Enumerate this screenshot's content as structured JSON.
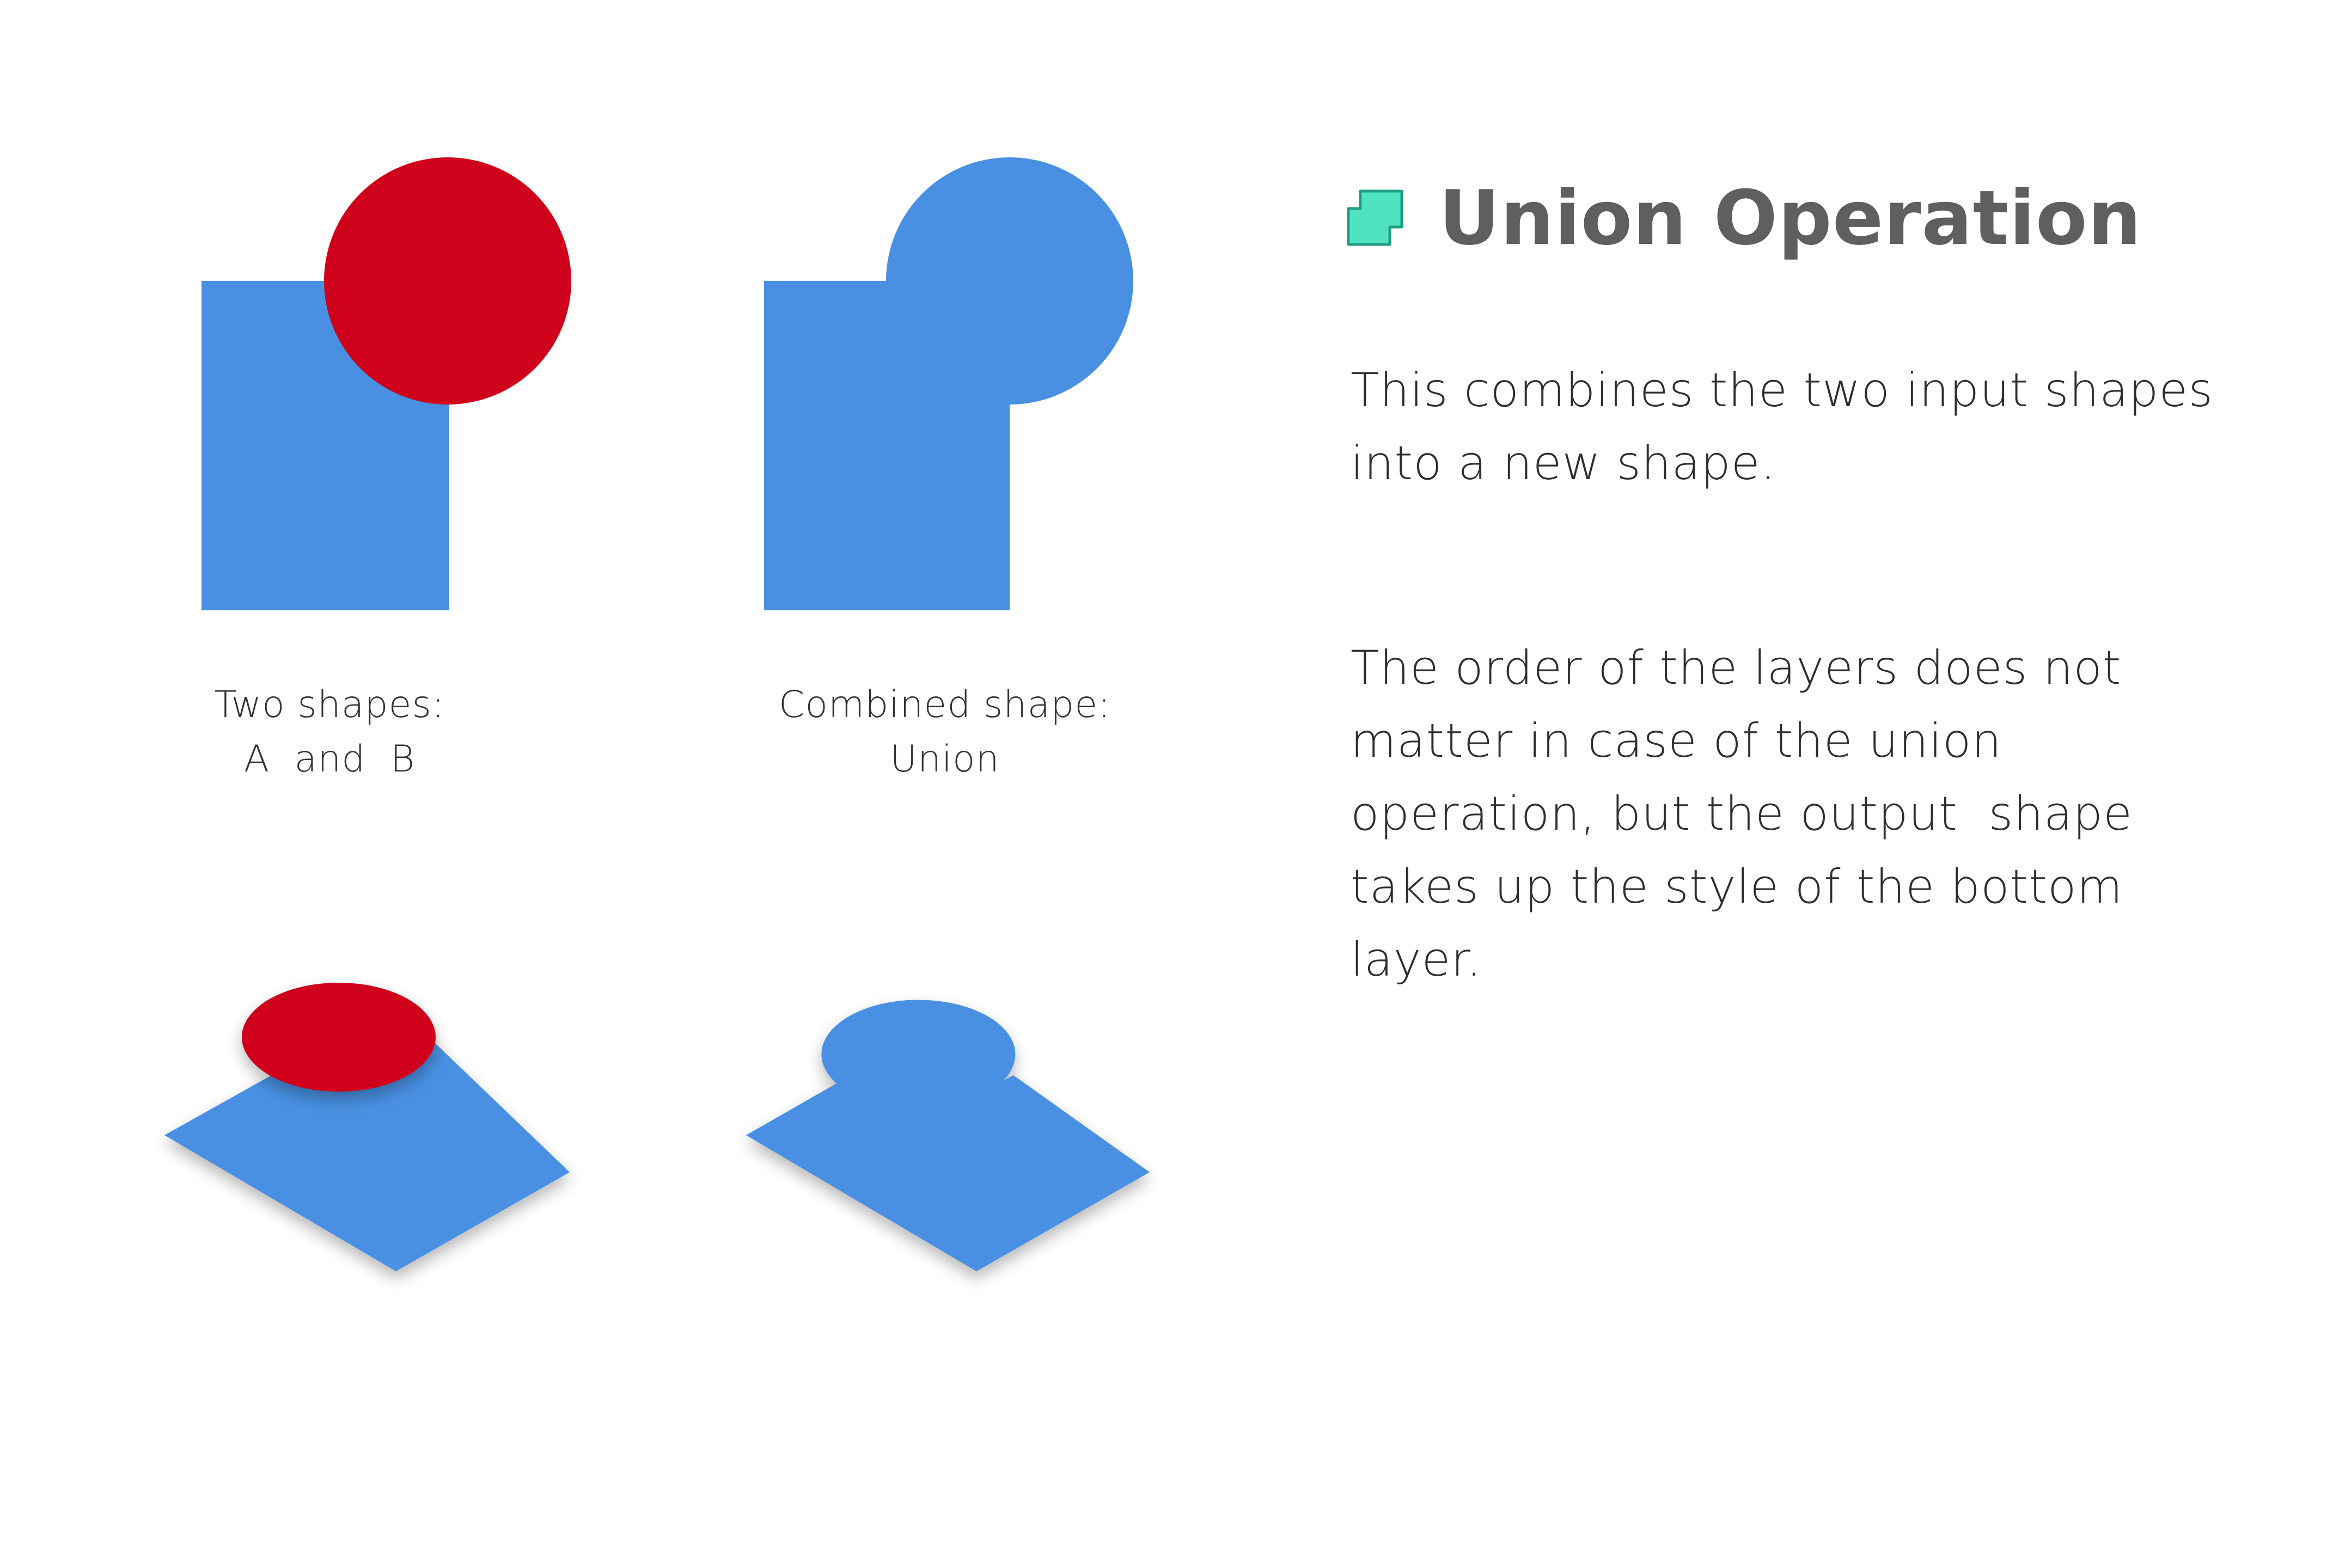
{
  "colors": {
    "shape_a": "#4a90e2",
    "shape_b": "#d0021b",
    "title_text": "#5f5f5f",
    "body_text": "#2e2e2e",
    "icon_accent": "#50e3c2"
  },
  "captions": {
    "input": [
      "Two shapes:",
      "A  and  B"
    ],
    "output": [
      "Combined shape:",
      "Union"
    ]
  },
  "header": {
    "icon": "union-operation-icon",
    "title": "Union Operation"
  },
  "description": {
    "paragraph_1": [
      "This combines the two input shapes",
      "into a new shape."
    ],
    "paragraph_2": [
      "The order of the layers does not",
      "matter in case of the union",
      "operation, but the output  shape",
      "takes up the style of the bottom",
      "layer."
    ]
  }
}
